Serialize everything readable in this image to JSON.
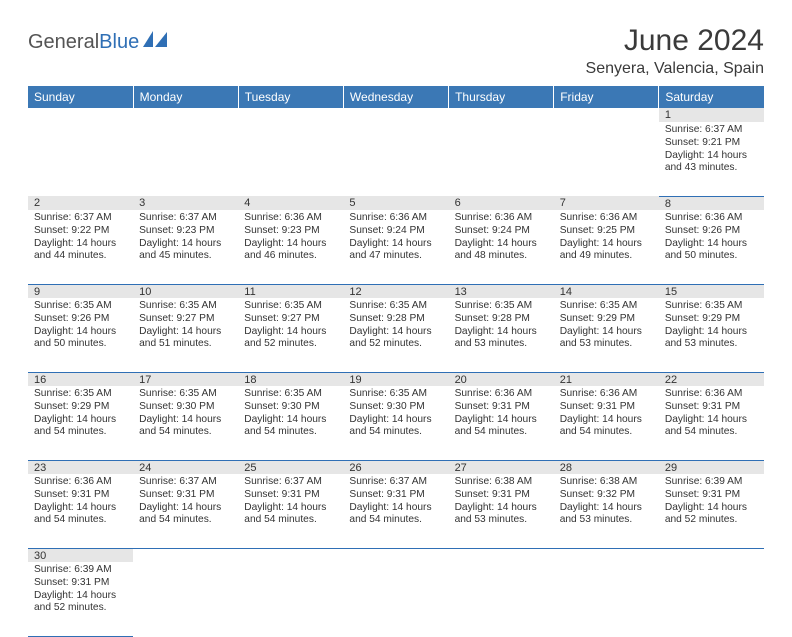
{
  "brand": {
    "general": "General",
    "blue": "Blue"
  },
  "header": {
    "month_title": "June 2024",
    "location": "Senyera, Valencia, Spain"
  },
  "colors": {
    "header_bg": "#3b78b5",
    "header_text": "#ffffff",
    "daynum_bg": "#e6e6e6",
    "cell_border": "#2f6fb5",
    "text": "#333333",
    "page_bg": "#ffffff"
  },
  "typography": {
    "title_fontsize_pt": 22,
    "location_fontsize_pt": 12,
    "weekday_fontsize_pt": 9,
    "daynum_fontsize_pt": 8,
    "detail_fontsize_pt": 7.7
  },
  "weekdays": [
    "Sunday",
    "Monday",
    "Tuesday",
    "Wednesday",
    "Thursday",
    "Friday",
    "Saturday"
  ],
  "weeks": [
    [
      null,
      null,
      null,
      null,
      null,
      null,
      {
        "n": "1",
        "sr": "6:37 AM",
        "ss": "9:21 PM",
        "dh": "14",
        "dm": "43"
      }
    ],
    [
      {
        "n": "2",
        "sr": "6:37 AM",
        "ss": "9:22 PM",
        "dh": "14",
        "dm": "44"
      },
      {
        "n": "3",
        "sr": "6:37 AM",
        "ss": "9:23 PM",
        "dh": "14",
        "dm": "45"
      },
      {
        "n": "4",
        "sr": "6:36 AM",
        "ss": "9:23 PM",
        "dh": "14",
        "dm": "46"
      },
      {
        "n": "5",
        "sr": "6:36 AM",
        "ss": "9:24 PM",
        "dh": "14",
        "dm": "47"
      },
      {
        "n": "6",
        "sr": "6:36 AM",
        "ss": "9:24 PM",
        "dh": "14",
        "dm": "48"
      },
      {
        "n": "7",
        "sr": "6:36 AM",
        "ss": "9:25 PM",
        "dh": "14",
        "dm": "49"
      },
      {
        "n": "8",
        "sr": "6:36 AM",
        "ss": "9:26 PM",
        "dh": "14",
        "dm": "50"
      }
    ],
    [
      {
        "n": "9",
        "sr": "6:35 AM",
        "ss": "9:26 PM",
        "dh": "14",
        "dm": "50"
      },
      {
        "n": "10",
        "sr": "6:35 AM",
        "ss": "9:27 PM",
        "dh": "14",
        "dm": "51"
      },
      {
        "n": "11",
        "sr": "6:35 AM",
        "ss": "9:27 PM",
        "dh": "14",
        "dm": "52"
      },
      {
        "n": "12",
        "sr": "6:35 AM",
        "ss": "9:28 PM",
        "dh": "14",
        "dm": "52"
      },
      {
        "n": "13",
        "sr": "6:35 AM",
        "ss": "9:28 PM",
        "dh": "14",
        "dm": "53"
      },
      {
        "n": "14",
        "sr": "6:35 AM",
        "ss": "9:29 PM",
        "dh": "14",
        "dm": "53"
      },
      {
        "n": "15",
        "sr": "6:35 AM",
        "ss": "9:29 PM",
        "dh": "14",
        "dm": "53"
      }
    ],
    [
      {
        "n": "16",
        "sr": "6:35 AM",
        "ss": "9:29 PM",
        "dh": "14",
        "dm": "54"
      },
      {
        "n": "17",
        "sr": "6:35 AM",
        "ss": "9:30 PM",
        "dh": "14",
        "dm": "54"
      },
      {
        "n": "18",
        "sr": "6:35 AM",
        "ss": "9:30 PM",
        "dh": "14",
        "dm": "54"
      },
      {
        "n": "19",
        "sr": "6:35 AM",
        "ss": "9:30 PM",
        "dh": "14",
        "dm": "54"
      },
      {
        "n": "20",
        "sr": "6:36 AM",
        "ss": "9:31 PM",
        "dh": "14",
        "dm": "54"
      },
      {
        "n": "21",
        "sr": "6:36 AM",
        "ss": "9:31 PM",
        "dh": "14",
        "dm": "54"
      },
      {
        "n": "22",
        "sr": "6:36 AM",
        "ss": "9:31 PM",
        "dh": "14",
        "dm": "54"
      }
    ],
    [
      {
        "n": "23",
        "sr": "6:36 AM",
        "ss": "9:31 PM",
        "dh": "14",
        "dm": "54"
      },
      {
        "n": "24",
        "sr": "6:37 AM",
        "ss": "9:31 PM",
        "dh": "14",
        "dm": "54"
      },
      {
        "n": "25",
        "sr": "6:37 AM",
        "ss": "9:31 PM",
        "dh": "14",
        "dm": "54"
      },
      {
        "n": "26",
        "sr": "6:37 AM",
        "ss": "9:31 PM",
        "dh": "14",
        "dm": "54"
      },
      {
        "n": "27",
        "sr": "6:38 AM",
        "ss": "9:31 PM",
        "dh": "14",
        "dm": "53"
      },
      {
        "n": "28",
        "sr": "6:38 AM",
        "ss": "9:32 PM",
        "dh": "14",
        "dm": "53"
      },
      {
        "n": "29",
        "sr": "6:39 AM",
        "ss": "9:31 PM",
        "dh": "14",
        "dm": "52"
      }
    ],
    [
      {
        "n": "30",
        "sr": "6:39 AM",
        "ss": "9:31 PM",
        "dh": "14",
        "dm": "52"
      },
      null,
      null,
      null,
      null,
      null,
      null
    ]
  ],
  "labels": {
    "sunrise": "Sunrise:",
    "sunset": "Sunset:",
    "daylight": "Daylight:",
    "hours": "hours",
    "and": "and",
    "minutes": "minutes."
  }
}
